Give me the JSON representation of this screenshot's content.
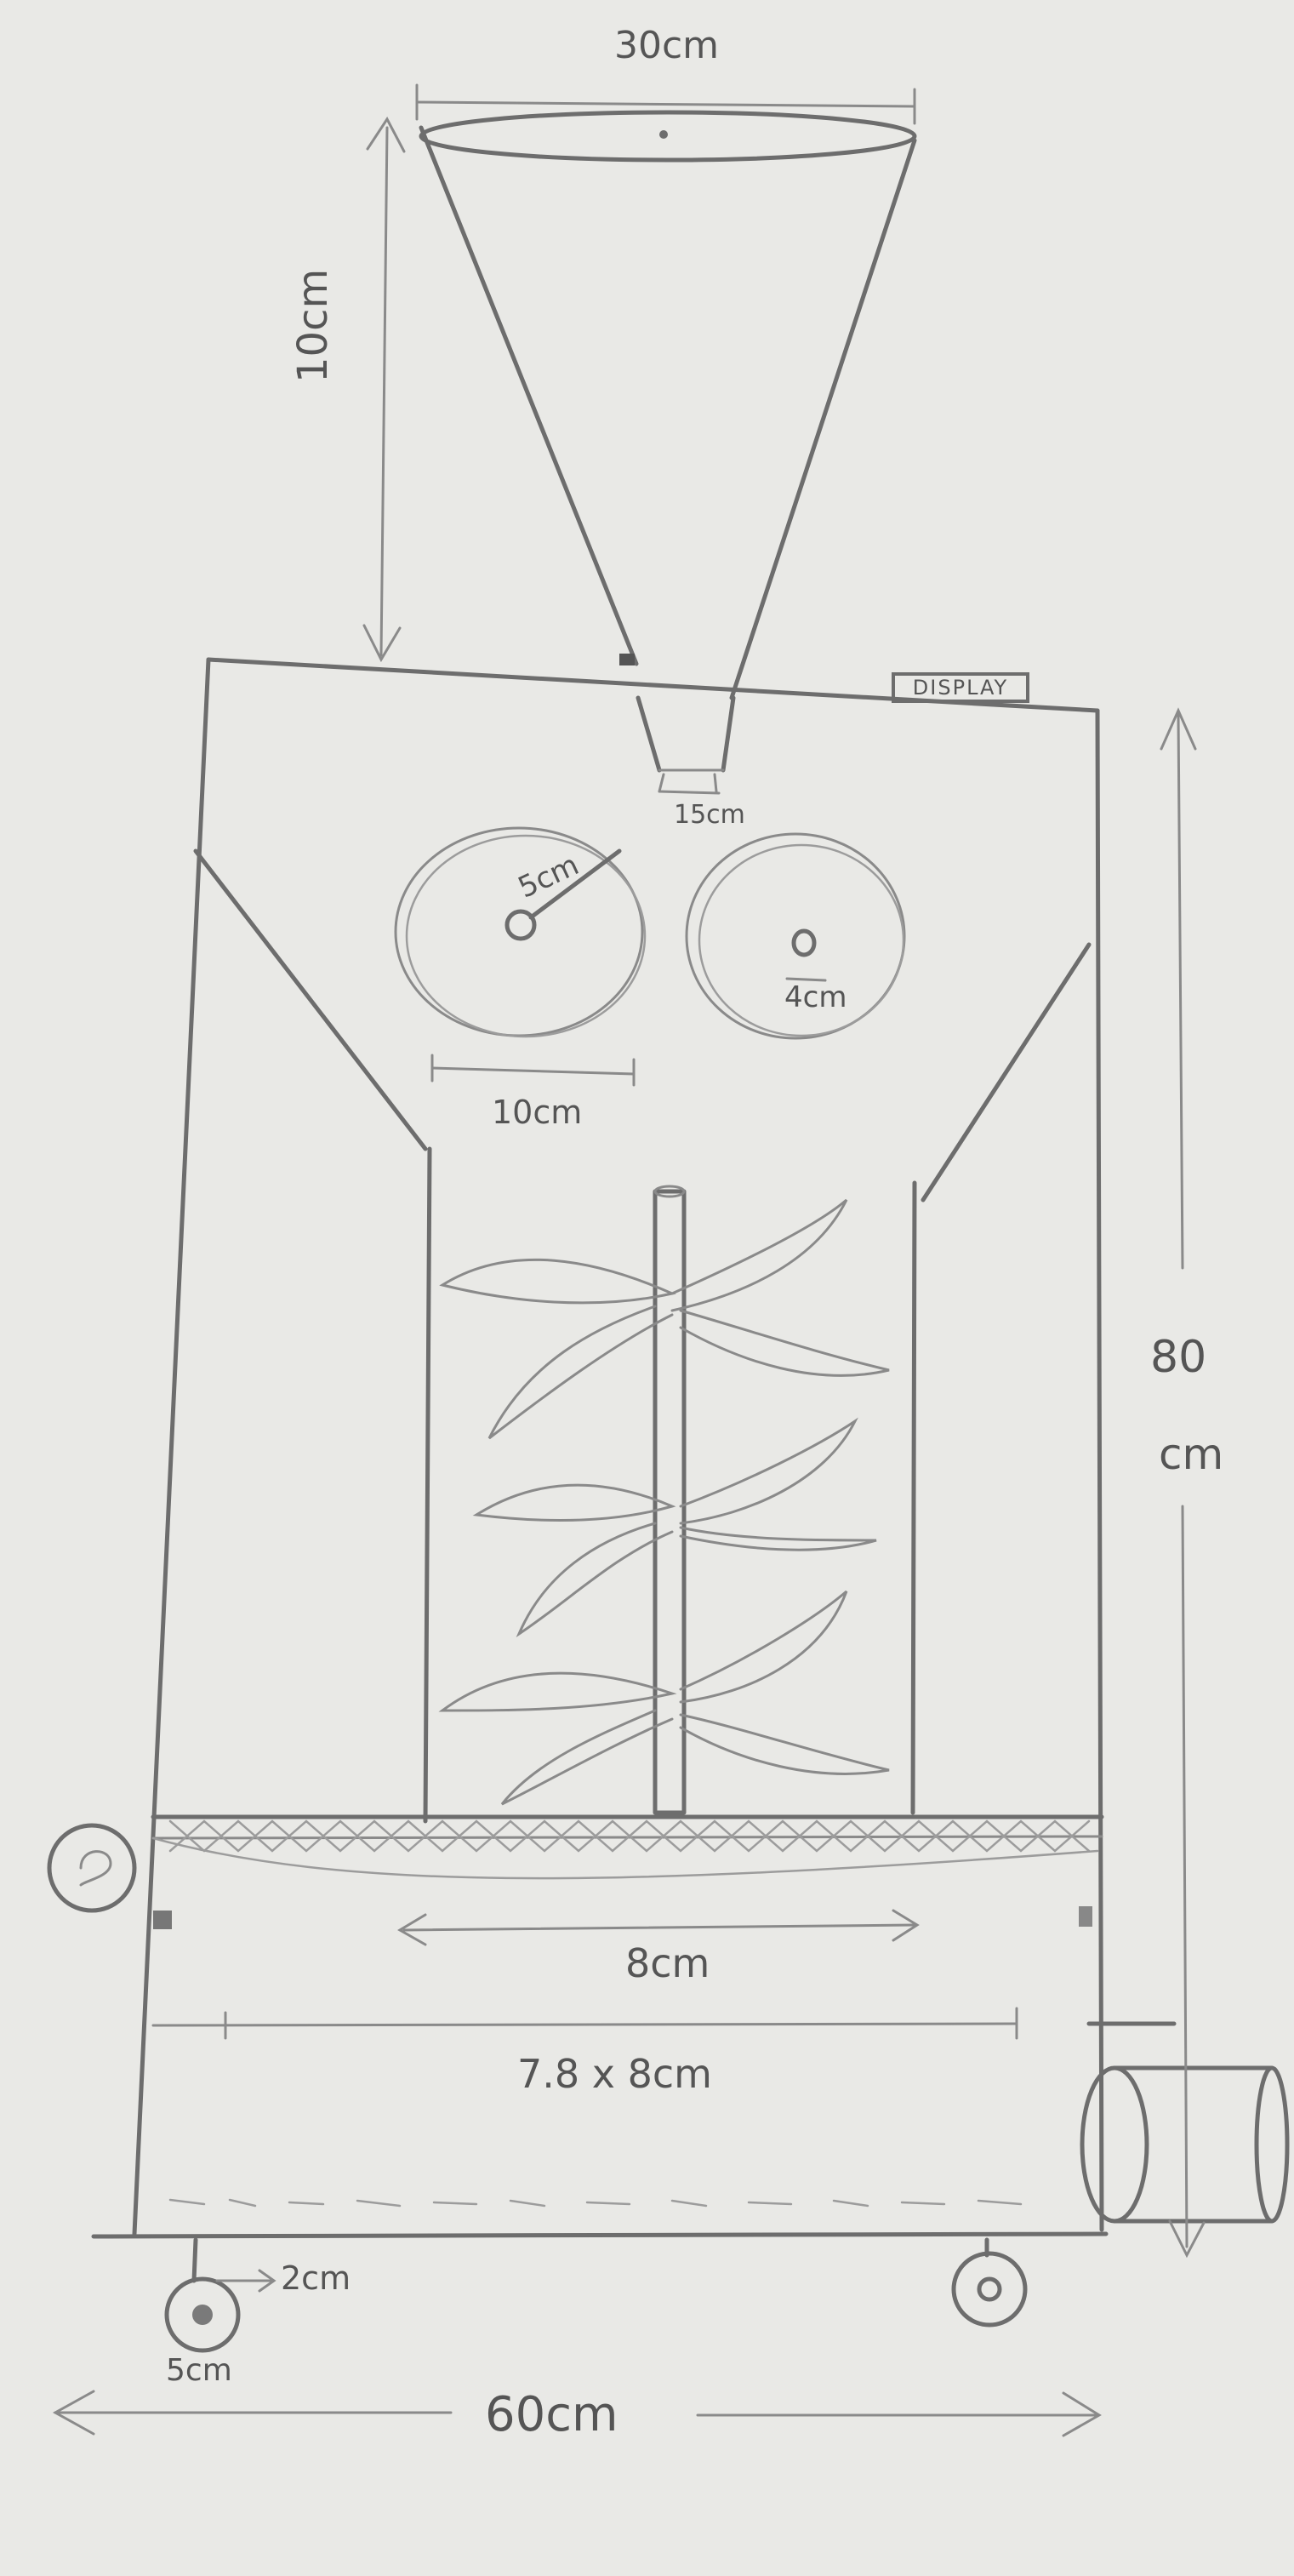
{
  "labels": {
    "hopper_top_width": "30cm",
    "hopper_height": "10cm",
    "hopper_outlet": "15cm",
    "display": "DISPLAY",
    "roller_radius": "5cm",
    "roller_diameter": "10cm",
    "roller_hole": "4cm",
    "total_height_number": "80",
    "total_height_unit": "cm",
    "chamber_width": "8cm",
    "tray_size": "7.8 x 8cm",
    "wheel_offset": "2cm",
    "wheel_size": "5cm",
    "total_width": "60cm"
  }
}
